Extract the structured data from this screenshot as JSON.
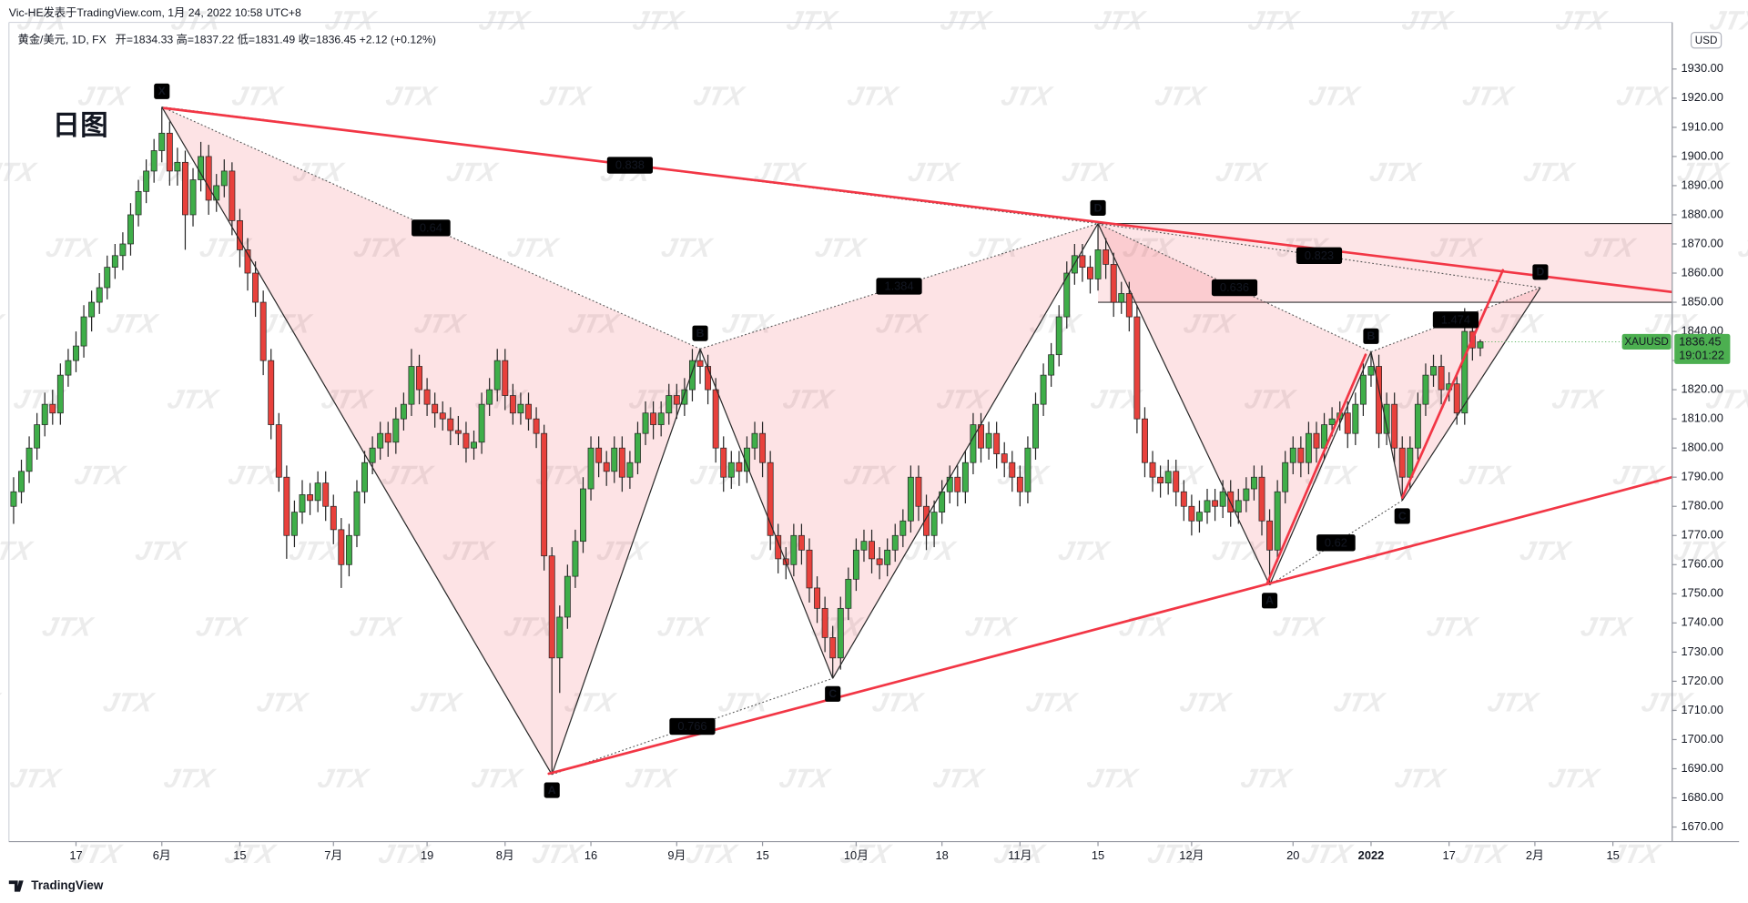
{
  "header": {
    "author_line": "Vic-HE发表于TradingView.com, 1月 24, 2022 10:58 UTC+8",
    "footer": "TradingView"
  },
  "chart_data": {
    "type": "candlestick",
    "title": "黄金/美元, 1D, FX",
    "ohlc_header": "开=1834.33 高=1837.22 低=1831.49 收=1836.45 +2.12 (+0.12%)",
    "annotation_title": "日图",
    "watermark": "JTX",
    "currency": "USD",
    "symbol": "XAUUSD",
    "countdown": "19:01:22",
    "up_color": "#3fae49",
    "down_color": "#e8413c",
    "wick_color": "#262626",
    "tag_color": "#4caf50",
    "trend_color": "#f23645",
    "pattern_color": "#f23645",
    "grid": false,
    "xlim": [
      -0.6,
      212.6
    ],
    "ylim": [
      1665,
      1946
    ],
    "xticks": [
      {
        "value": 8,
        "label": "17"
      },
      {
        "value": 19,
        "label": "6月"
      },
      {
        "value": 29,
        "label": "15"
      },
      {
        "value": 41,
        "label": "7月"
      },
      {
        "value": 53,
        "label": "19"
      },
      {
        "value": 63,
        "label": "8月"
      },
      {
        "value": 74,
        "label": "16"
      },
      {
        "value": 85,
        "label": "9月"
      },
      {
        "value": 96,
        "label": "15"
      },
      {
        "value": 108,
        "label": "10月"
      },
      {
        "value": 119,
        "label": "18"
      },
      {
        "value": 129,
        "label": "11月"
      },
      {
        "value": 139,
        "label": "15"
      },
      {
        "value": 151,
        "label": "12月"
      },
      {
        "value": 164,
        "label": "20"
      },
      {
        "value": 174,
        "label": "2022"
      },
      {
        "value": 184,
        "label": "17"
      },
      {
        "value": 195,
        "label": "2月"
      },
      {
        "value": 205,
        "label": "15"
      }
    ],
    "yticks": [
      {
        "value": 1670,
        "label": "1670.00"
      },
      {
        "value": 1680,
        "label": "1680.00"
      },
      {
        "value": 1690,
        "label": "1690.00"
      },
      {
        "value": 1700,
        "label": "1700.00"
      },
      {
        "value": 1710,
        "label": "1710.00"
      },
      {
        "value": 1720,
        "label": "1720.00"
      },
      {
        "value": 1730,
        "label": "1730.00"
      },
      {
        "value": 1740,
        "label": "1740.00"
      },
      {
        "value": 1750,
        "label": "1750.00"
      },
      {
        "value": 1760,
        "label": "1760.00"
      },
      {
        "value": 1770,
        "label": "1770.00"
      },
      {
        "value": 1780,
        "label": "1780.00"
      },
      {
        "value": 1790,
        "label": "1790.00"
      },
      {
        "value": 1800,
        "label": "1800.00"
      },
      {
        "value": 1810,
        "label": "1810.00"
      },
      {
        "value": 1820,
        "label": "1820.00"
      },
      {
        "value": 1830,
        "label": "1830.00"
      },
      {
        "value": 1840,
        "label": "1840.00"
      },
      {
        "value": 1850,
        "label": "1850.00"
      },
      {
        "value": 1860,
        "label": "1860.00"
      },
      {
        "value": 1870,
        "label": "1870.00"
      },
      {
        "value": 1880,
        "label": "1880.00"
      },
      {
        "value": 1890,
        "label": "1890.00"
      },
      {
        "value": 1900,
        "label": "1900.00"
      },
      {
        "value": 1910,
        "label": "1910.00"
      },
      {
        "value": 1920,
        "label": "1920.00"
      },
      {
        "value": 1930,
        "label": "1930.00"
      }
    ],
    "candles": [
      [
        1780,
        1790,
        1774,
        1785
      ],
      [
        1785,
        1796,
        1781,
        1792
      ],
      [
        1792,
        1804,
        1788,
        1800
      ],
      [
        1800,
        1812,
        1796,
        1808
      ],
      [
        1808,
        1819,
        1804,
        1815
      ],
      [
        1815,
        1820,
        1808,
        1812
      ],
      [
        1812,
        1829,
        1808,
        1825
      ],
      [
        1825,
        1834,
        1821,
        1830
      ],
      [
        1830,
        1840,
        1826,
        1835
      ],
      [
        1835,
        1849,
        1831,
        1845
      ],
      [
        1845,
        1854,
        1840,
        1850
      ],
      [
        1850,
        1860,
        1846,
        1855
      ],
      [
        1855,
        1866,
        1851,
        1862
      ],
      [
        1862,
        1870,
        1858,
        1866
      ],
      [
        1866,
        1874,
        1861,
        1870
      ],
      [
        1870,
        1884,
        1866,
        1880
      ],
      [
        1880,
        1892,
        1876,
        1888
      ],
      [
        1888,
        1899,
        1884,
        1895
      ],
      [
        1895,
        1906,
        1891,
        1902
      ],
      [
        1902,
        1917,
        1898,
        1908
      ],
      [
        1908,
        1912,
        1890,
        1895
      ],
      [
        1895,
        1903,
        1890,
        1898
      ],
      [
        1898,
        1902,
        1868,
        1880
      ],
      [
        1880,
        1896,
        1876,
        1892
      ],
      [
        1892,
        1905,
        1888,
        1900
      ],
      [
        1900,
        1904,
        1880,
        1885
      ],
      [
        1885,
        1894,
        1881,
        1890
      ],
      [
        1890,
        1899,
        1886,
        1895
      ],
      [
        1895,
        1898,
        1873,
        1878
      ],
      [
        1878,
        1882,
        1862,
        1868
      ],
      [
        1868,
        1872,
        1854,
        1860
      ],
      [
        1860,
        1864,
        1845,
        1850
      ],
      [
        1850,
        1854,
        1825,
        1830
      ],
      [
        1830,
        1834,
        1803,
        1808
      ],
      [
        1808,
        1812,
        1785,
        1790
      ],
      [
        1790,
        1794,
        1762,
        1770
      ],
      [
        1770,
        1782,
        1766,
        1778
      ],
      [
        1778,
        1789,
        1774,
        1784
      ],
      [
        1784,
        1788,
        1777,
        1782
      ],
      [
        1782,
        1792,
        1778,
        1788
      ],
      [
        1788,
        1792,
        1775,
        1780
      ],
      [
        1780,
        1784,
        1767,
        1772
      ],
      [
        1772,
        1776,
        1752,
        1760
      ],
      [
        1760,
        1774,
        1756,
        1770
      ],
      [
        1770,
        1789,
        1766,
        1785
      ],
      [
        1785,
        1799,
        1781,
        1795
      ],
      [
        1795,
        1804,
        1791,
        1800
      ],
      [
        1800,
        1809,
        1796,
        1805
      ],
      [
        1805,
        1809,
        1797,
        1802
      ],
      [
        1802,
        1814,
        1798,
        1810
      ],
      [
        1810,
        1819,
        1806,
        1815
      ],
      [
        1815,
        1834,
        1811,
        1828
      ],
      [
        1828,
        1832,
        1815,
        1820
      ],
      [
        1820,
        1824,
        1811,
        1815
      ],
      [
        1815,
        1819,
        1807,
        1812
      ],
      [
        1812,
        1816,
        1806,
        1810
      ],
      [
        1810,
        1814,
        1801,
        1806
      ],
      [
        1806,
        1811,
        1801,
        1805
      ],
      [
        1805,
        1809,
        1795,
        1800
      ],
      [
        1800,
        1806,
        1796,
        1802
      ],
      [
        1802,
        1819,
        1798,
        1815
      ],
      [
        1815,
        1824,
        1811,
        1820
      ],
      [
        1820,
        1834,
        1816,
        1830
      ],
      [
        1830,
        1834,
        1813,
        1818
      ],
      [
        1818,
        1822,
        1808,
        1812
      ],
      [
        1812,
        1819,
        1808,
        1815
      ],
      [
        1815,
        1819,
        1806,
        1810
      ],
      [
        1810,
        1814,
        1800,
        1805
      ],
      [
        1805,
        1808,
        1758,
        1763
      ],
      [
        1763,
        1766,
        1688,
        1728
      ],
      [
        1728,
        1746,
        1716,
        1742
      ],
      [
        1742,
        1760,
        1738,
        1756
      ],
      [
        1756,
        1772,
        1752,
        1768
      ],
      [
        1768,
        1790,
        1764,
        1786
      ],
      [
        1786,
        1804,
        1782,
        1800
      ],
      [
        1800,
        1804,
        1790,
        1795
      ],
      [
        1795,
        1799,
        1787,
        1792
      ],
      [
        1792,
        1804,
        1788,
        1800
      ],
      [
        1800,
        1804,
        1785,
        1790
      ],
      [
        1790,
        1799,
        1786,
        1795
      ],
      [
        1795,
        1809,
        1791,
        1805
      ],
      [
        1805,
        1816,
        1801,
        1812
      ],
      [
        1812,
        1816,
        1803,
        1808
      ],
      [
        1808,
        1816,
        1804,
        1812
      ],
      [
        1812,
        1822,
        1808,
        1818
      ],
      [
        1818,
        1822,
        1810,
        1815
      ],
      [
        1815,
        1824,
        1811,
        1820
      ],
      [
        1820,
        1834,
        1816,
        1830
      ],
      [
        1830,
        1834,
        1822,
        1828
      ],
      [
        1828,
        1832,
        1815,
        1820
      ],
      [
        1820,
        1824,
        1795,
        1800
      ],
      [
        1800,
        1804,
        1785,
        1790
      ],
      [
        1790,
        1799,
        1786,
        1795
      ],
      [
        1795,
        1799,
        1787,
        1792
      ],
      [
        1792,
        1804,
        1788,
        1800
      ],
      [
        1800,
        1809,
        1796,
        1805
      ],
      [
        1805,
        1809,
        1790,
        1795
      ],
      [
        1795,
        1799,
        1765,
        1770
      ],
      [
        1770,
        1774,
        1757,
        1762
      ],
      [
        1762,
        1766,
        1755,
        1760
      ],
      [
        1760,
        1774,
        1756,
        1770
      ],
      [
        1770,
        1774,
        1760,
        1765
      ],
      [
        1765,
        1769,
        1747,
        1752
      ],
      [
        1752,
        1756,
        1740,
        1745
      ],
      [
        1745,
        1749,
        1730,
        1735
      ],
      [
        1735,
        1739,
        1721,
        1728
      ],
      [
        1728,
        1749,
        1724,
        1745
      ],
      [
        1745,
        1759,
        1741,
        1755
      ],
      [
        1755,
        1769,
        1751,
        1765
      ],
      [
        1765,
        1772,
        1761,
        1768
      ],
      [
        1768,
        1772,
        1757,
        1762
      ],
      [
        1762,
        1766,
        1755,
        1760
      ],
      [
        1760,
        1769,
        1756,
        1765
      ],
      [
        1765,
        1774,
        1761,
        1770
      ],
      [
        1770,
        1779,
        1766,
        1775
      ],
      [
        1775,
        1794,
        1771,
        1790
      ],
      [
        1790,
        1794,
        1775,
        1780
      ],
      [
        1780,
        1784,
        1765,
        1770
      ],
      [
        1770,
        1782,
        1766,
        1778
      ],
      [
        1778,
        1789,
        1774,
        1785
      ],
      [
        1785,
        1794,
        1781,
        1790
      ],
      [
        1790,
        1794,
        1780,
        1785
      ],
      [
        1785,
        1799,
        1781,
        1795
      ],
      [
        1795,
        1812,
        1791,
        1808
      ],
      [
        1808,
        1812,
        1795,
        1800
      ],
      [
        1800,
        1809,
        1796,
        1805
      ],
      [
        1805,
        1809,
        1793,
        1798
      ],
      [
        1798,
        1802,
        1790,
        1795
      ],
      [
        1795,
        1799,
        1785,
        1790
      ],
      [
        1790,
        1794,
        1780,
        1785
      ],
      [
        1785,
        1804,
        1781,
        1800
      ],
      [
        1800,
        1819,
        1796,
        1815
      ],
      [
        1815,
        1829,
        1811,
        1825
      ],
      [
        1825,
        1836,
        1821,
        1832
      ],
      [
        1832,
        1849,
        1828,
        1845
      ],
      [
        1845,
        1864,
        1841,
        1860
      ],
      [
        1860,
        1870,
        1856,
        1866
      ],
      [
        1866,
        1870,
        1857,
        1862
      ],
      [
        1862,
        1866,
        1853,
        1858
      ],
      [
        1858,
        1877,
        1854,
        1868
      ],
      [
        1868,
        1872,
        1858,
        1863
      ],
      [
        1863,
        1867,
        1845,
        1850
      ],
      [
        1850,
        1857,
        1846,
        1853
      ],
      [
        1853,
        1857,
        1840,
        1845
      ],
      [
        1845,
        1849,
        1805,
        1810
      ],
      [
        1810,
        1814,
        1790,
        1795
      ],
      [
        1795,
        1799,
        1785,
        1790
      ],
      [
        1790,
        1794,
        1783,
        1788
      ],
      [
        1788,
        1796,
        1784,
        1792
      ],
      [
        1792,
        1796,
        1780,
        1785
      ],
      [
        1785,
        1789,
        1775,
        1780
      ],
      [
        1780,
        1784,
        1770,
        1775
      ],
      [
        1775,
        1782,
        1771,
        1778
      ],
      [
        1778,
        1786,
        1774,
        1782
      ],
      [
        1782,
        1786,
        1775,
        1780
      ],
      [
        1780,
        1789,
        1776,
        1785
      ],
      [
        1785,
        1789,
        1773,
        1778
      ],
      [
        1778,
        1786,
        1774,
        1782
      ],
      [
        1782,
        1790,
        1778,
        1786
      ],
      [
        1786,
        1794,
        1782,
        1790
      ],
      [
        1790,
        1794,
        1770,
        1775
      ],
      [
        1775,
        1779,
        1753,
        1765
      ],
      [
        1765,
        1789,
        1761,
        1785
      ],
      [
        1785,
        1799,
        1781,
        1795
      ],
      [
        1795,
        1804,
        1791,
        1800
      ],
      [
        1800,
        1804,
        1790,
        1795
      ],
      [
        1795,
        1809,
        1791,
        1805
      ],
      [
        1805,
        1809,
        1795,
        1800
      ],
      [
        1800,
        1812,
        1796,
        1808
      ],
      [
        1808,
        1814,
        1804,
        1810
      ],
      [
        1810,
        1816,
        1806,
        1812
      ],
      [
        1812,
        1816,
        1800,
        1805
      ],
      [
        1805,
        1819,
        1801,
        1815
      ],
      [
        1815,
        1829,
        1811,
        1825
      ],
      [
        1825,
        1833,
        1821,
        1828
      ],
      [
        1828,
        1832,
        1800,
        1805
      ],
      [
        1805,
        1819,
        1801,
        1815
      ],
      [
        1815,
        1819,
        1795,
        1800
      ],
      [
        1800,
        1804,
        1782,
        1790
      ],
      [
        1790,
        1804,
        1786,
        1800
      ],
      [
        1800,
        1819,
        1796,
        1815
      ],
      [
        1815,
        1829,
        1811,
        1825
      ],
      [
        1825,
        1832,
        1821,
        1828
      ],
      [
        1828,
        1832,
        1815,
        1820
      ],
      [
        1820,
        1826,
        1816,
        1822
      ],
      [
        1822,
        1826,
        1808,
        1812
      ],
      [
        1812,
        1848,
        1808,
        1840
      ],
      [
        1840,
        1844,
        1830,
        1834.33
      ],
      [
        1834.33,
        1837.22,
        1831.49,
        1836.45
      ]
    ],
    "zones": [
      {
        "x": 139,
        "top": 1877,
        "bottom": 1850
      }
    ],
    "patterns": [
      {
        "points": [
          {
            "label": "X",
            "x": 19,
            "y": 1917
          },
          {
            "label": "A",
            "x": 69,
            "y": 1688
          },
          {
            "label": "B",
            "x": 88,
            "y": 1834
          },
          {
            "label": "C",
            "x": 105,
            "y": 1721
          },
          {
            "label": "D",
            "x": 139,
            "y": 1877
          }
        ],
        "ratios": [
          0.64,
          0.766,
          1.384,
          0.838
        ]
      },
      {
        "points": [
          {
            "label": null,
            "x": 139,
            "y": 1877
          },
          {
            "label": "A",
            "x": 161,
            "y": 1753
          },
          {
            "label": "B",
            "x": 174,
            "y": 1833
          },
          {
            "label": "C",
            "x": 178,
            "y": 1782
          },
          {
            "label": "D",
            "x": 195.7,
            "y": 1855
          }
        ],
        "ratios": [
          0.636,
          0.62,
          1.474,
          0.823
        ]
      }
    ],
    "trendlines": [
      {
        "x": [
          19.3,
          212.6
        ],
        "y": [
          1916.6,
          1853.5
        ]
      },
      {
        "x": [
          68.6,
          212.6
        ],
        "y": [
          1688.3,
          1790
        ]
      },
      {
        "x": [
          160.7,
          173.3
        ],
        "y": [
          1753.7,
          1832
        ]
      },
      {
        "x": [
          178,
          190.9
        ],
        "y": [
          1783,
          1861
        ]
      }
    ]
  }
}
